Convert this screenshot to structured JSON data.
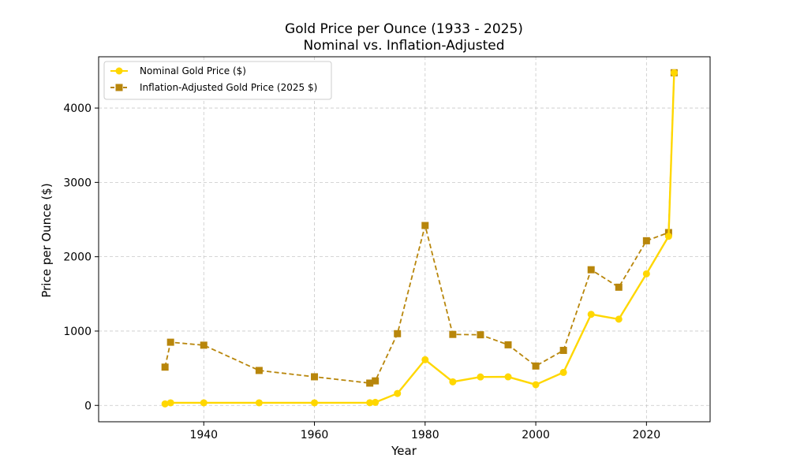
{
  "chart_data": {
    "type": "line",
    "title": "Gold Price per Ounce (1933 - 2025)",
    "subtitle": "Nominal vs. Inflation-Adjusted",
    "xlabel": "Year",
    "ylabel": "Price per Ounce ($)",
    "xlim": [
      1921,
      2031.5
    ],
    "ylim": [
      -220,
      4690
    ],
    "xticks": [
      1940,
      1960,
      1980,
      2000,
      2020
    ],
    "yticks": [
      0,
      1000,
      2000,
      3000,
      4000
    ],
    "grid": true,
    "legend_position": "top-left",
    "colors": {
      "nominal": "#FFD700",
      "adjusted": "#B8860B"
    },
    "series": [
      {
        "name": "Nominal Gold Price ($)",
        "style": "solid-circle",
        "x": [
          1933,
          1934,
          1940,
          1950,
          1960,
          1970,
          1971,
          1975,
          1980,
          1985,
          1990,
          1995,
          2000,
          2005,
          2010,
          2015,
          2020,
          2024,
          2025
        ],
        "values": [
          20,
          35,
          35,
          35,
          35,
          36,
          41,
          161,
          615,
          317,
          383,
          384,
          279,
          444,
          1225,
          1160,
          1770,
          2275,
          4475
        ]
      },
      {
        "name": "Inflation-Adjusted Gold Price (2025 $)",
        "style": "dashed-square",
        "x": [
          1933,
          1934,
          1940,
          1950,
          1960,
          1970,
          1971,
          1975,
          1980,
          1985,
          1990,
          1995,
          2000,
          2005,
          2010,
          2015,
          2020,
          2024,
          2025
        ],
        "values": [
          515,
          850,
          810,
          470,
          385,
          300,
          330,
          965,
          2420,
          955,
          950,
          815,
          530,
          740,
          1825,
          1590,
          2215,
          2325,
          4475
        ]
      }
    ]
  }
}
